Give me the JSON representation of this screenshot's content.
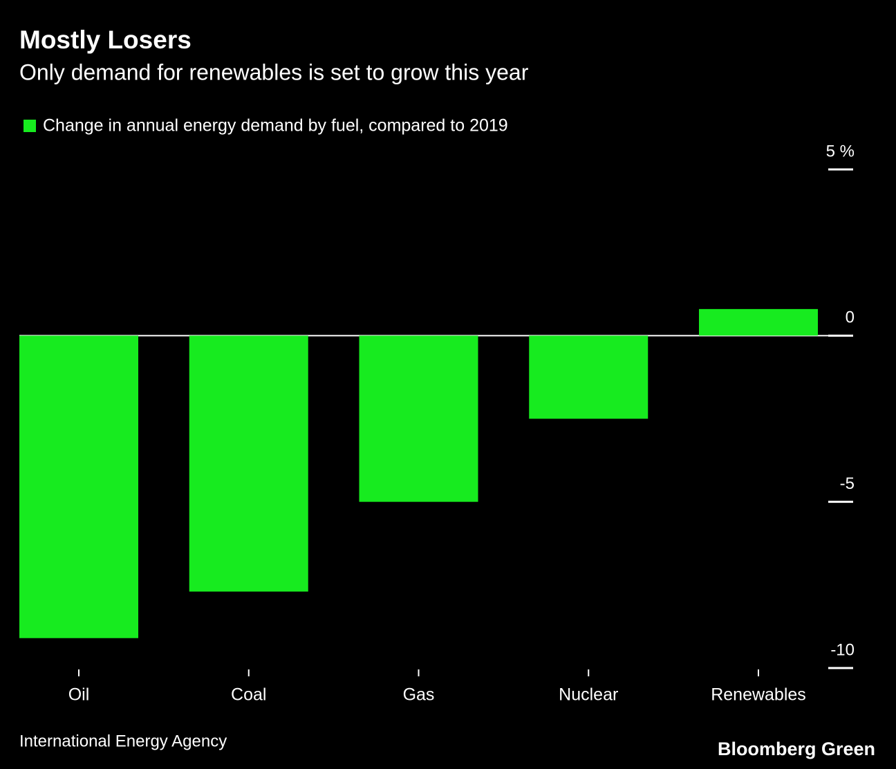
{
  "chart_data": {
    "type": "bar",
    "title": "Mostly Losers",
    "subtitle": "Only demand for renewables is set to grow this year",
    "categories": [
      "Oil",
      "Coal",
      "Gas",
      "Nuclear",
      "Renewables"
    ],
    "series": [
      {
        "name": "Change in annual energy demand by fuel, compared to 2019",
        "color": "#17eb1f",
        "values": [
          -9.1,
          -7.7,
          -5,
          -2.5,
          0.8
        ]
      }
    ],
    "ylim": [
      -10,
      5
    ],
    "yticks": [
      {
        "value": 5,
        "label": "5 %"
      },
      0,
      -5,
      -10
    ],
    "source": "International Energy Agency",
    "brand": "Bloomberg Green"
  }
}
